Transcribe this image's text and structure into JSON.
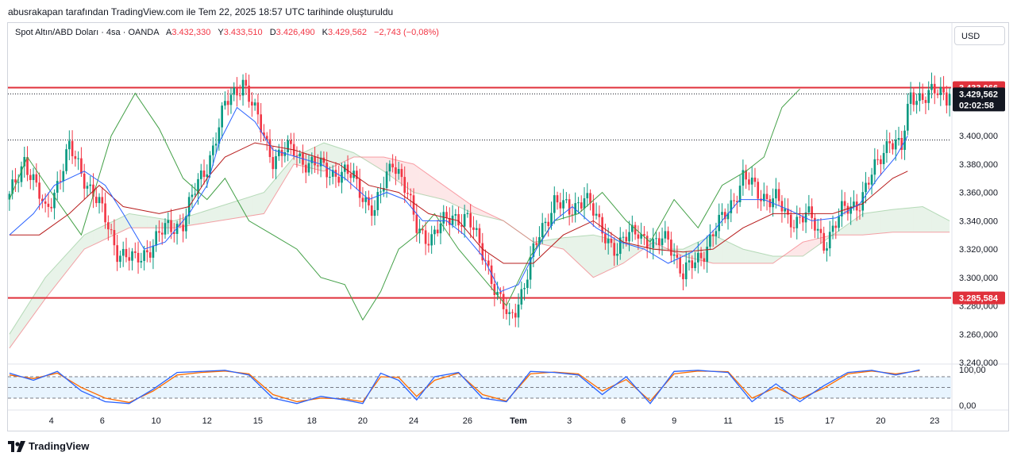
{
  "header_text": "abusrakapan tarafından TradingView.com ile Tem 22, 2025 18:57 UTC tarihinde oluşturuldu",
  "legend": {
    "symbol": "Spot Altın/ABD Doları · 4sa · OANDA",
    "open_label": "A",
    "open": "3.432,330",
    "high_label": "Y",
    "high": "3.433,510",
    "low_label": "D",
    "low": "3.426,490",
    "close_label": "K",
    "close": "3.429,562",
    "change": "−2,743 (−0,08%)"
  },
  "currency_button": "USD",
  "footer_brand": "TradingView",
  "colors": {
    "up": "#089981",
    "down": "#f23645",
    "line_red": "#e0313b",
    "tenkan": "#2962ff",
    "kijun": "#b71c1c",
    "chikou": "#43a047",
    "stoch_k": "#2962ff",
    "stoch_d": "#ff6d00"
  },
  "chart_data": {
    "type": "candlestick",
    "title": "Spot Altın/ABD Doları · 4sa · OANDA",
    "ylim": [
      3240,
      3460
    ],
    "y_ticks": [
      "3.240,000",
      "3.260,000",
      "3.280,000",
      "3.300,000",
      "3.320,000",
      "3.340,000",
      "3.360,000",
      "3.380,000",
      "3.400,000"
    ],
    "y_tick_values": [
      3240,
      3260,
      3280,
      3300,
      3320,
      3340,
      3360,
      3380,
      3400
    ],
    "x_ticks": [
      "4",
      "6",
      "10",
      "12",
      "15",
      "18",
      "20",
      "24",
      "26",
      "Tem",
      "3",
      "6",
      "9",
      "11",
      "15",
      "17",
      "20",
      "23"
    ],
    "x_tick_bars": [
      14,
      31,
      49,
      66,
      83,
      101,
      118,
      135,
      153,
      170,
      187,
      205,
      222,
      240,
      257,
      274,
      291,
      309
    ],
    "bar_count": 315,
    "horizontal_lines": [
      {
        "value": 3433.966,
        "label": "3.433,966",
        "style": "solid"
      },
      {
        "value": 3285.584,
        "label": "3.285,584",
        "style": "solid"
      },
      {
        "value": 3429.562,
        "label": "3.429,562",
        "style": "dotted",
        "countdown": "02:02:58"
      },
      {
        "value": 3397,
        "label": "",
        "style": "dotted"
      }
    ],
    "price_keypoints": [
      [
        0,
        3355
      ],
      [
        5,
        3385
      ],
      [
        12,
        3345
      ],
      [
        20,
        3390
      ],
      [
        28,
        3360
      ],
      [
        36,
        3320
      ],
      [
        42,
        3310
      ],
      [
        50,
        3330
      ],
      [
        58,
        3340
      ],
      [
        66,
        3380
      ],
      [
        72,
        3420
      ],
      [
        78,
        3440
      ],
      [
        82,
        3415
      ],
      [
        88,
        3385
      ],
      [
        95,
        3390
      ],
      [
        100,
        3380
      ],
      [
        108,
        3375
      ],
      [
        115,
        3370
      ],
      [
        122,
        3345
      ],
      [
        128,
        3385
      ],
      [
        131,
        3370
      ],
      [
        136,
        3335
      ],
      [
        141,
        3328
      ],
      [
        148,
        3345
      ],
      [
        153,
        3340
      ],
      [
        159,
        3315
      ],
      [
        163,
        3285
      ],
      [
        167,
        3270
      ],
      [
        172,
        3295
      ],
      [
        177,
        3330
      ],
      [
        182,
        3355
      ],
      [
        187,
        3345
      ],
      [
        192,
        3360
      ],
      [
        197,
        3335
      ],
      [
        203,
        3320
      ],
      [
        210,
        3335
      ],
      [
        215,
        3320
      ],
      [
        220,
        3330
      ],
      [
        225,
        3300
      ],
      [
        232,
        3320
      ],
      [
        238,
        3340
      ],
      [
        245,
        3370
      ],
      [
        250,
        3360
      ],
      [
        256,
        3355
      ],
      [
        260,
        3340
      ],
      [
        266,
        3345
      ],
      [
        272,
        3325
      ],
      [
        278,
        3345
      ],
      [
        284,
        3355
      ],
      [
        289,
        3375
      ],
      [
        294,
        3400
      ],
      [
        298,
        3390
      ],
      [
        301,
        3428
      ],
      [
        304,
        3429
      ]
    ],
    "ichimoku": {
      "tenkan": [
        [
          0,
          3330
        ],
        [
          8,
          3345
        ],
        [
          15,
          3365
        ],
        [
          25,
          3375
        ],
        [
          32,
          3365
        ],
        [
          38,
          3345
        ],
        [
          45,
          3320
        ],
        [
          52,
          3325
        ],
        [
          60,
          3345
        ],
        [
          66,
          3365
        ],
        [
          70,
          3395
        ],
        [
          76,
          3420
        ],
        [
          82,
          3410
        ],
        [
          88,
          3390
        ],
        [
          96,
          3385
        ],
        [
          104,
          3380
        ],
        [
          112,
          3370
        ],
        [
          120,
          3355
        ],
        [
          126,
          3360
        ],
        [
          132,
          3355
        ],
        [
          138,
          3340
        ],
        [
          146,
          3340
        ],
        [
          152,
          3330
        ],
        [
          158,
          3315
        ],
        [
          164,
          3290
        ],
        [
          170,
          3295
        ],
        [
          176,
          3320
        ],
        [
          182,
          3340
        ],
        [
          188,
          3350
        ],
        [
          196,
          3335
        ],
        [
          204,
          3325
        ],
        [
          212,
          3320
        ],
        [
          220,
          3310
        ],
        [
          228,
          3318
        ],
        [
          236,
          3335
        ],
        [
          244,
          3355
        ],
        [
          252,
          3355
        ],
        [
          260,
          3348
        ],
        [
          268,
          3340
        ],
        [
          276,
          3342
        ],
        [
          284,
          3352
        ],
        [
          290,
          3370
        ],
        [
          296,
          3385
        ],
        [
          300,
          3400
        ]
      ],
      "kijun": [
        [
          0,
          3330
        ],
        [
          10,
          3330
        ],
        [
          20,
          3345
        ],
        [
          30,
          3365
        ],
        [
          38,
          3350
        ],
        [
          50,
          3345
        ],
        [
          60,
          3350
        ],
        [
          66,
          3370
        ],
        [
          72,
          3385
        ],
        [
          82,
          3395
        ],
        [
          95,
          3390
        ],
        [
          110,
          3380
        ],
        [
          120,
          3365
        ],
        [
          130,
          3360
        ],
        [
          140,
          3345
        ],
        [
          150,
          3340
        ],
        [
          158,
          3320
        ],
        [
          165,
          3310
        ],
        [
          175,
          3310
        ],
        [
          185,
          3330
        ],
        [
          195,
          3340
        ],
        [
          205,
          3325
        ],
        [
          215,
          3320
        ],
        [
          225,
          3318
        ],
        [
          235,
          3320
        ],
        [
          245,
          3335
        ],
        [
          255,
          3345
        ],
        [
          265,
          3345
        ],
        [
          275,
          3345
        ],
        [
          285,
          3352
        ],
        [
          295,
          3370
        ],
        [
          300,
          3375
        ]
      ],
      "chikou": [
        [
          0,
          3355
        ],
        [
          6,
          3385
        ],
        [
          14,
          3360
        ],
        [
          24,
          3330
        ],
        [
          34,
          3400
        ],
        [
          42,
          3430
        ],
        [
          50,
          3405
        ],
        [
          58,
          3370
        ],
        [
          66,
          3355
        ],
        [
          72,
          3370
        ],
        [
          80,
          3340
        ],
        [
          88,
          3330
        ],
        [
          96,
          3320
        ],
        [
          104,
          3300
        ],
        [
          112,
          3295
        ],
        [
          118,
          3270
        ],
        [
          124,
          3290
        ],
        [
          130,
          3320
        ],
        [
          136,
          3330
        ],
        [
          142,
          3345
        ],
        [
          150,
          3320
        ],
        [
          158,
          3300
        ],
        [
          166,
          3280
        ],
        [
          174,
          3315
        ],
        [
          182,
          3340
        ],
        [
          190,
          3345
        ],
        [
          198,
          3360
        ],
        [
          206,
          3340
        ],
        [
          214,
          3325
        ],
        [
          222,
          3355
        ],
        [
          230,
          3335
        ],
        [
          238,
          3365
        ],
        [
          246,
          3375
        ],
        [
          252,
          3385
        ],
        [
          258,
          3420
        ],
        [
          264,
          3433
        ]
      ],
      "span_a": [
        [
          0,
          3260
        ],
        [
          12,
          3300
        ],
        [
          25,
          3330
        ],
        [
          40,
          3345
        ],
        [
          55,
          3340
        ],
        [
          70,
          3350
        ],
        [
          85,
          3360
        ],
        [
          95,
          3385
        ],
        [
          105,
          3395
        ],
        [
          115,
          3388
        ],
        [
          125,
          3375
        ],
        [
          135,
          3360
        ],
        [
          145,
          3355
        ],
        [
          155,
          3345
        ],
        [
          165,
          3340
        ],
        [
          175,
          3325
        ],
        [
          185,
          3328
        ],
        [
          195,
          3330
        ],
        [
          205,
          3325
        ],
        [
          215,
          3320
        ],
        [
          225,
          3320
        ],
        [
          235,
          3330
        ],
        [
          245,
          3320
        ],
        [
          255,
          3315
        ],
        [
          265,
          3315
        ],
        [
          275,
          3330
        ],
        [
          285,
          3345
        ],
        [
          295,
          3348
        ],
        [
          305,
          3350
        ],
        [
          314,
          3340
        ]
      ],
      "span_b": [
        [
          0,
          3250
        ],
        [
          12,
          3285
        ],
        [
          25,
          3320
        ],
        [
          40,
          3335
        ],
        [
          55,
          3335
        ],
        [
          70,
          3340
        ],
        [
          85,
          3345
        ],
        [
          95,
          3380
        ],
        [
          105,
          3375
        ],
        [
          115,
          3385
        ],
        [
          125,
          3385
        ],
        [
          135,
          3380
        ],
        [
          145,
          3365
        ],
        [
          155,
          3350
        ],
        [
          165,
          3340
        ],
        [
          175,
          3325
        ],
        [
          185,
          3320
        ],
        [
          195,
          3300
        ],
        [
          205,
          3310
        ],
        [
          215,
          3325
        ],
        [
          225,
          3315
        ],
        [
          235,
          3310
        ],
        [
          245,
          3310
        ],
        [
          255,
          3310
        ],
        [
          265,
          3325
        ],
        [
          275,
          3330
        ],
        [
          285,
          3330
        ],
        [
          295,
          3332
        ],
        [
          305,
          3332
        ],
        [
          314,
          3332
        ]
      ]
    },
    "stochastic": {
      "ylim": [
        0,
        100
      ],
      "y_ticks": [
        "0,00",
        "100,00"
      ],
      "y_tick_values": [
        0,
        100
      ],
      "bands": [
        20,
        50,
        80
      ],
      "k_keypoints": [
        [
          0,
          90
        ],
        [
          8,
          70
        ],
        [
          16,
          95
        ],
        [
          24,
          40
        ],
        [
          32,
          10
        ],
        [
          40,
          5
        ],
        [
          48,
          45
        ],
        [
          56,
          92
        ],
        [
          64,
          95
        ],
        [
          72,
          98
        ],
        [
          80,
          85
        ],
        [
          88,
          20
        ],
        [
          96,
          5
        ],
        [
          104,
          25
        ],
        [
          112,
          15
        ],
        [
          118,
          5
        ],
        [
          124,
          90
        ],
        [
          130,
          70
        ],
        [
          136,
          15
        ],
        [
          142,
          80
        ],
        [
          150,
          92
        ],
        [
          158,
          20
        ],
        [
          166,
          10
        ],
        [
          174,
          95
        ],
        [
          182,
          92
        ],
        [
          190,
          85
        ],
        [
          198,
          30
        ],
        [
          206,
          80
        ],
        [
          214,
          5
        ],
        [
          222,
          95
        ],
        [
          230,
          98
        ],
        [
          240,
          92
        ],
        [
          248,
          10
        ],
        [
          256,
          60
        ],
        [
          264,
          10
        ],
        [
          272,
          55
        ],
        [
          280,
          92
        ],
        [
          288,
          98
        ],
        [
          296,
          85
        ],
        [
          304,
          99
        ]
      ],
      "d_keypoints": [
        [
          0,
          85
        ],
        [
          8,
          75
        ],
        [
          16,
          90
        ],
        [
          24,
          50
        ],
        [
          32,
          20
        ],
        [
          40,
          8
        ],
        [
          48,
          40
        ],
        [
          56,
          85
        ],
        [
          64,
          92
        ],
        [
          72,
          96
        ],
        [
          80,
          88
        ],
        [
          88,
          30
        ],
        [
          96,
          10
        ],
        [
          104,
          20
        ],
        [
          112,
          18
        ],
        [
          118,
          10
        ],
        [
          124,
          80
        ],
        [
          130,
          78
        ],
        [
          136,
          25
        ],
        [
          142,
          70
        ],
        [
          150,
          90
        ],
        [
          158,
          30
        ],
        [
          166,
          12
        ],
        [
          174,
          88
        ],
        [
          182,
          93
        ],
        [
          190,
          88
        ],
        [
          198,
          40
        ],
        [
          206,
          72
        ],
        [
          214,
          12
        ],
        [
          222,
          88
        ],
        [
          230,
          96
        ],
        [
          240,
          94
        ],
        [
          248,
          20
        ],
        [
          256,
          50
        ],
        [
          264,
          18
        ],
        [
          272,
          48
        ],
        [
          280,
          88
        ],
        [
          288,
          96
        ],
        [
          296,
          88
        ],
        [
          304,
          97
        ]
      ]
    }
  }
}
